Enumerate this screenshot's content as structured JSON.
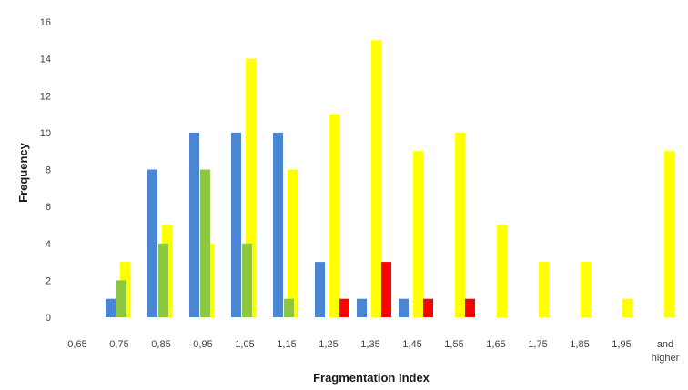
{
  "chart_data": {
    "type": "bar",
    "title": "",
    "xlabel": "Fragmentation Index",
    "ylabel": "Frequency",
    "ylim": [
      0,
      16
    ],
    "yticks": [
      0,
      2,
      4,
      6,
      8,
      10,
      12,
      14,
      16
    ],
    "grid": false,
    "legend": "none",
    "categories": [
      "0,65",
      "0,75",
      "0,85",
      "0,95",
      "1,05",
      "1,15",
      "1,25",
      "1,35",
      "1,45",
      "1,55",
      "1,65",
      "1,75",
      "1,85",
      "1,95",
      "and higher"
    ],
    "series": [
      {
        "color": "#4a86d4",
        "values": [
          0,
          1,
          8,
          10,
          10,
          10,
          3,
          1,
          1,
          0,
          0,
          0,
          0,
          0,
          0
        ]
      },
      {
        "color": "#ffff00",
        "values": [
          0,
          3,
          5,
          4,
          14,
          8,
          11,
          15,
          9,
          10,
          5,
          3,
          3,
          1,
          9
        ]
      },
      {
        "color": "#8dc63f",
        "values": [
          0,
          2,
          4,
          8,
          4,
          1,
          0,
          0,
          0,
          0,
          0,
          0,
          0,
          0,
          0
        ]
      },
      {
        "color": "#ff0000",
        "values": [
          0,
          0,
          0,
          0,
          0,
          0,
          1,
          3,
          1,
          1,
          0,
          0,
          0,
          0,
          0
        ]
      }
    ]
  }
}
